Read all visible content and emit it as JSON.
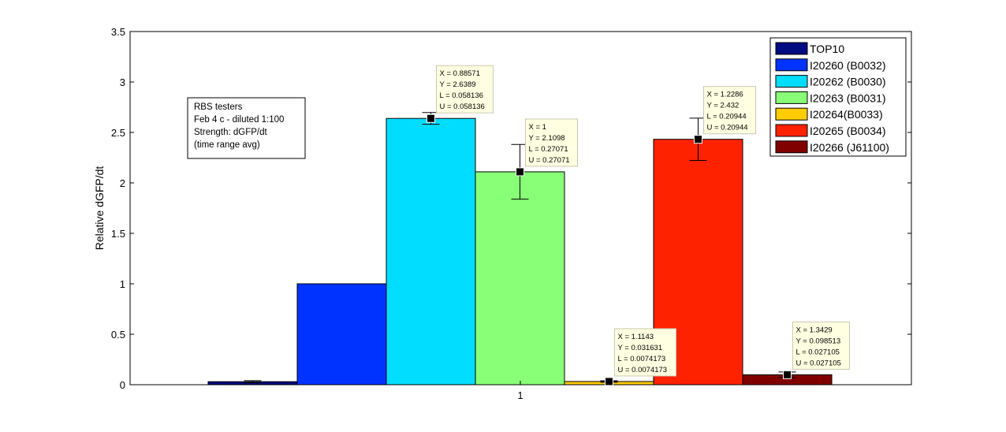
{
  "chart_data": {
    "type": "bar",
    "categories": [
      "1"
    ],
    "ylabel": "Relative dGFP/dt",
    "ylim": [
      0,
      3.5
    ],
    "yticks": [
      "0",
      "0.5",
      "1",
      "1.5",
      "2",
      "2.5",
      "3",
      "3.5"
    ],
    "grid": false,
    "legend_position": "top-right",
    "series": [
      {
        "name": "TOP10",
        "value": 0.03,
        "color": "#000c80",
        "err": 0.01
      },
      {
        "name": "I20260 (B0032)",
        "value": 1.0,
        "color": "#0033ff",
        "err": 0
      },
      {
        "name": "I20262 (B0030)",
        "value": 2.6389,
        "color": "#00ddff",
        "err": 0.058136
      },
      {
        "name": "I20263 (B0031)",
        "value": 2.1098,
        "color": "#88ff77",
        "err": 0.27071
      },
      {
        "name": "I20264(B0033)",
        "value": 0.031631,
        "color": "#ffcc00",
        "err": 0.0074173
      },
      {
        "name": "I20265 (B0034)",
        "value": 2.432,
        "color": "#ff2200",
        "err": 0.20944
      },
      {
        "name": "I20266 (J61100)",
        "value": 0.098513,
        "color": "#800000",
        "err": 0.027105
      }
    ],
    "annotation_box": {
      "lines": [
        "RBS testers",
        "Feb 4 c - diluted 1:100",
        "Strength: dGFP/dt",
        "(time range avg)"
      ]
    },
    "datatips": [
      {
        "bar": 2,
        "lines": [
          "X = 0.88571",
          "Y = 2.6389",
          "L = 0.058136",
          "U = 0.058136"
        ]
      },
      {
        "bar": 3,
        "lines": [
          "X = 1",
          "Y = 2.1098",
          "L = 0.27071",
          "U = 0.27071"
        ]
      },
      {
        "bar": 4,
        "lines": [
          "X = 1.1143",
          "Y = 0.031631",
          "L = 0.0074173",
          "U = 0.0074173"
        ]
      },
      {
        "bar": 5,
        "lines": [
          "X = 1.2286",
          "Y = 2.432",
          "L = 0.20944",
          "U = 0.20944"
        ]
      },
      {
        "bar": 6,
        "lines": [
          "X = 1.3429",
          "Y = 0.098513",
          "L = 0.027105",
          "U = 0.027105"
        ]
      }
    ]
  }
}
